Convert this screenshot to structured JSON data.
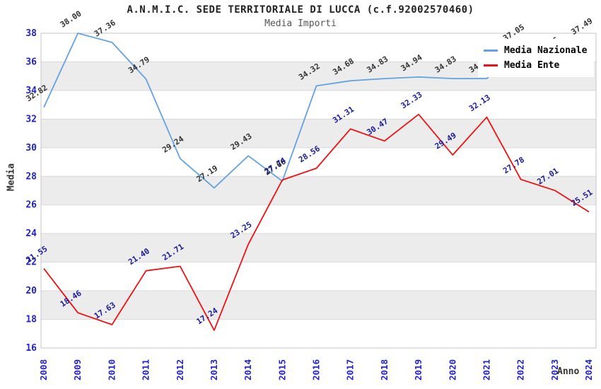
{
  "title": "A.N.M.I.C. SEDE TERRITORIALE DI LUCCA (c.f.92002570460)",
  "subtitle": "Media Importi",
  "legend": {
    "items": [
      {
        "label": "Media Nazionale",
        "color": "#63a2e0"
      },
      {
        "label": "Media Ente",
        "color": "#ee1111"
      }
    ]
  },
  "axes": {
    "y_title": "Media",
    "x_title": "Anno",
    "y_ticks": [
      38,
      36,
      34,
      32,
      30,
      28,
      26,
      24,
      22,
      20,
      18,
      16
    ],
    "x_ticks": [
      "2008",
      "2009",
      "2010",
      "2011",
      "2012",
      "2013",
      "2014",
      "2015",
      "2016",
      "2017",
      "2018",
      "2019",
      "2020",
      "2021",
      "2022",
      "2023",
      "2024"
    ]
  },
  "colors": {
    "tick_label": "#2222cc",
    "band_gray": "#ececec",
    "gridline": "#d9d9d9",
    "plot_border": "#c4c4c4",
    "title_text": "#222222",
    "subtitle_text": "#555555"
  },
  "chart_data": {
    "type": "line",
    "title": "Media Importi",
    "xlabel": "Anno",
    "ylabel": "Media",
    "x": [
      "2008",
      "2009",
      "2010",
      "2011",
      "2012",
      "2013",
      "2014",
      "2015",
      "2016",
      "2017",
      "2018",
      "2019",
      "2020",
      "2021",
      "2022",
      "2023",
      "2024"
    ],
    "ylim": [
      16,
      38
    ],
    "grid": "horizontal-bands",
    "legend_position": "top-right-inside",
    "gray_bands": [
      [
        36,
        34
      ],
      [
        32,
        30
      ],
      [
        28,
        26
      ],
      [
        24,
        22
      ],
      [
        20,
        18
      ]
    ],
    "series": [
      {
        "name": "Media Nazionale",
        "color": "#63a2e0",
        "label_color": "#333333",
        "values": [
          32.82,
          38.0,
          37.36,
          34.79,
          29.24,
          27.19,
          29.43,
          27.66,
          34.32,
          34.68,
          34.83,
          34.94,
          34.83,
          34.83,
          37.05,
          36.16,
          37.49
        ]
      },
      {
        "name": "Media Ente",
        "color": "#ee1111",
        "label_color": "#1a1a99",
        "values": [
          21.55,
          18.46,
          17.63,
          21.4,
          21.71,
          17.24,
          23.25,
          27.74,
          28.56,
          31.31,
          30.47,
          32.33,
          29.49,
          32.13,
          27.78,
          27.01,
          25.51
        ]
      }
    ]
  }
}
